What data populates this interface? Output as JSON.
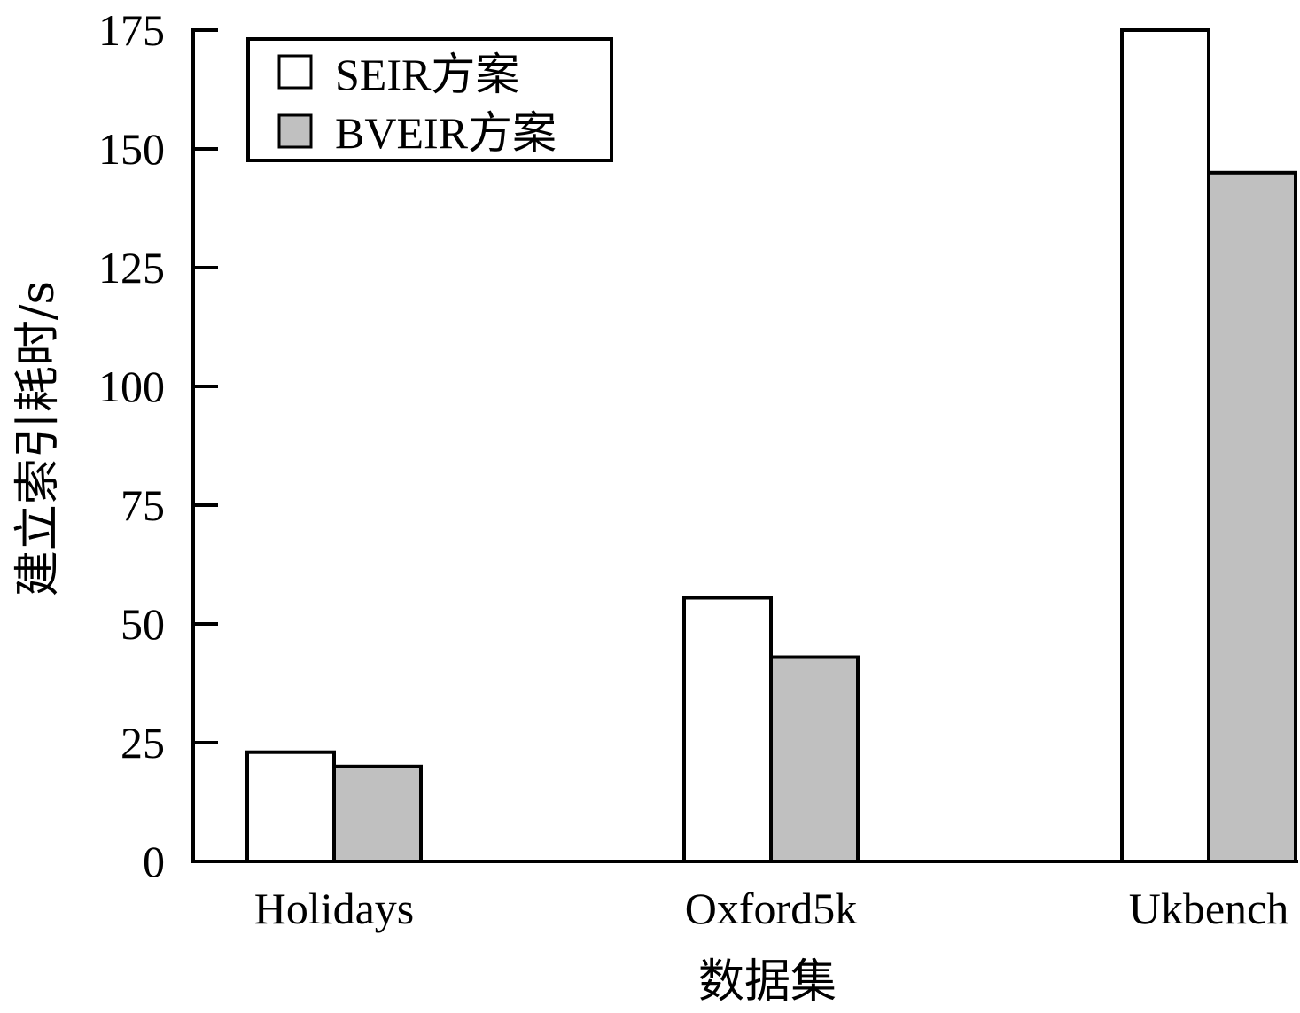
{
  "chart_data": {
    "type": "bar",
    "title": "",
    "xlabel": "数据集",
    "ylabel": "建立索引耗时/s",
    "categories": [
      "Holidays",
      "Oxford5k",
      "Ukbench"
    ],
    "series": [
      {
        "name": "SEIR方案",
        "values": [
          23,
          55.5,
          175
        ],
        "color": "#ffffff"
      },
      {
        "name": "BVEIR方案",
        "values": [
          20,
          43,
          145
        ],
        "color": "#c0c0c0"
      }
    ],
    "ylim": [
      0,
      175
    ],
    "yticks": [
      0,
      25,
      50,
      75,
      100,
      125,
      150,
      175
    ],
    "grid": false,
    "legend": "top-left"
  }
}
